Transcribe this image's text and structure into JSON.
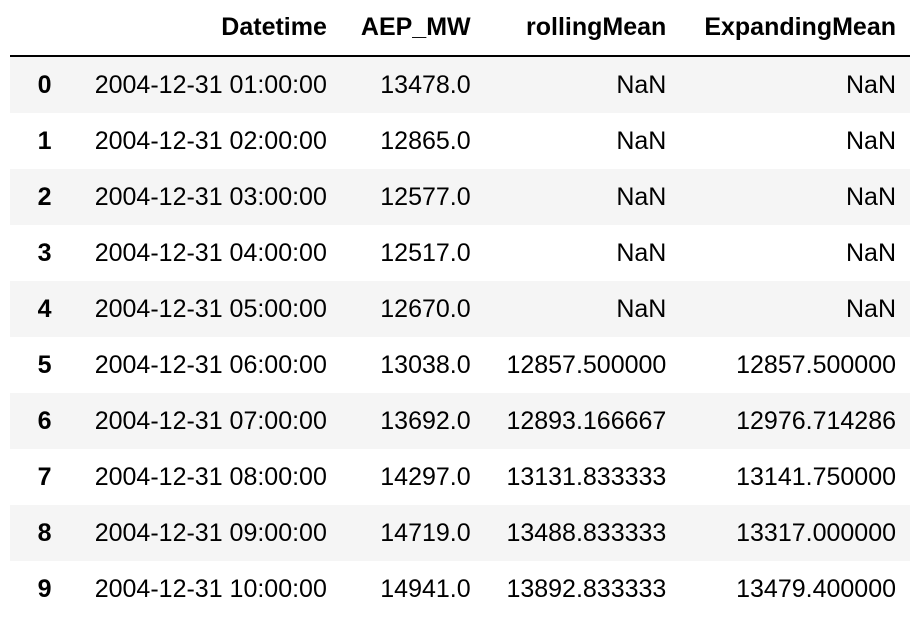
{
  "table": {
    "columns": [
      "",
      "Datetime",
      "AEP_MW",
      "rollingMean",
      "ExpandingMean"
    ],
    "rows": [
      {
        "index": "0",
        "datetime": "2004-12-31 01:00:00",
        "aep_mw": "13478.0",
        "rolling_mean": "NaN",
        "expanding_mean": "NaN"
      },
      {
        "index": "1",
        "datetime": "2004-12-31 02:00:00",
        "aep_mw": "12865.0",
        "rolling_mean": "NaN",
        "expanding_mean": "NaN"
      },
      {
        "index": "2",
        "datetime": "2004-12-31 03:00:00",
        "aep_mw": "12577.0",
        "rolling_mean": "NaN",
        "expanding_mean": "NaN"
      },
      {
        "index": "3",
        "datetime": "2004-12-31 04:00:00",
        "aep_mw": "12517.0",
        "rolling_mean": "NaN",
        "expanding_mean": "NaN"
      },
      {
        "index": "4",
        "datetime": "2004-12-31 05:00:00",
        "aep_mw": "12670.0",
        "rolling_mean": "NaN",
        "expanding_mean": "NaN"
      },
      {
        "index": "5",
        "datetime": "2004-12-31 06:00:00",
        "aep_mw": "13038.0",
        "rolling_mean": "12857.500000",
        "expanding_mean": "12857.500000"
      },
      {
        "index": "6",
        "datetime": "2004-12-31 07:00:00",
        "aep_mw": "13692.0",
        "rolling_mean": "12893.166667",
        "expanding_mean": "12976.714286"
      },
      {
        "index": "7",
        "datetime": "2004-12-31 08:00:00",
        "aep_mw": "14297.0",
        "rolling_mean": "13131.833333",
        "expanding_mean": "13141.750000"
      },
      {
        "index": "8",
        "datetime": "2004-12-31 09:00:00",
        "aep_mw": "14719.0",
        "rolling_mean": "13488.833333",
        "expanding_mean": "13317.000000"
      },
      {
        "index": "9",
        "datetime": "2004-12-31 10:00:00",
        "aep_mw": "14941.0",
        "rolling_mean": "13892.833333",
        "expanding_mean": "13479.400000"
      }
    ]
  }
}
